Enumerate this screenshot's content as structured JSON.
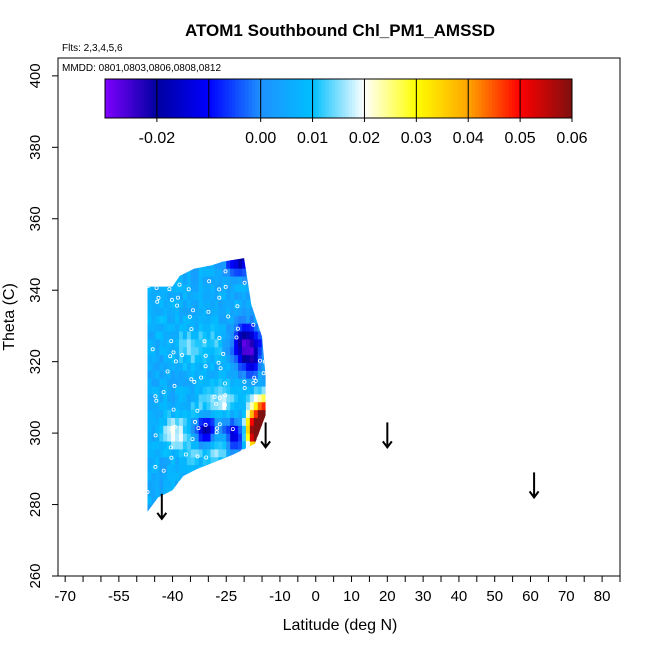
{
  "chart_data": {
    "type": "heatmap",
    "title": "ATOM1 Southbound Chl_PM1_AMSSD",
    "flights_label": "Flts: 2,3,4,5,6",
    "dates_label": "MMDD: 0801,0803,0806,0808,0812",
    "xlabel": "Latitude (deg N)",
    "ylabel": "Theta (C)",
    "xlim": [
      -72,
      85
    ],
    "ylim": [
      260,
      405
    ],
    "x_ticks": [
      -70,
      -55,
      -40,
      -25,
      -10,
      0,
      10,
      20,
      30,
      40,
      50,
      60,
      70,
      80
    ],
    "x_tick_labels": [
      "-70",
      "-55",
      "-40",
      "-25",
      "-10",
      "0",
      "10",
      "20",
      "30",
      "40",
      "50",
      "60",
      "70",
      "80"
    ],
    "x_minor_ticks": [
      -65,
      -60,
      -50,
      -45,
      -35,
      -30,
      -20,
      -15,
      -5,
      5,
      15,
      25,
      35,
      45,
      55,
      65,
      75,
      85
    ],
    "y_ticks": [
      260,
      280,
      300,
      320,
      340,
      360,
      380,
      400
    ],
    "y_tick_labels": [
      "260",
      "280",
      "300",
      "320",
      "340",
      "360",
      "380",
      "400"
    ],
    "colorbar": {
      "range": [
        -0.03,
        0.06
      ],
      "ticks": [
        -0.02,
        0.0,
        0.01,
        0.02,
        0.03,
        0.04,
        0.05,
        0.06
      ],
      "tick_labels": [
        "-0.02",
        "0.00",
        "0.01",
        "0.02",
        "0.03",
        "0.04",
        "0.05",
        "0.06"
      ],
      "boundaries": [
        -0.03,
        -0.02,
        -0.01,
        0.0,
        0.01,
        0.02,
        0.03,
        0.04,
        0.05,
        0.06
      ],
      "colors": [
        "#7f00ff",
        "#0000a0",
        "#0000ff",
        "#1e90ff",
        "#00bfff",
        "#ffffff",
        "#ffff00",
        "#ffa500",
        "#ff0000",
        "#7f1010"
      ]
    },
    "grid": false,
    "data_region": {
      "lat_min": -47,
      "lat_max": -14,
      "theta_min": 278,
      "theta_max": 349,
      "outline": [
        [
          -47,
          341
        ],
        [
          -40,
          341
        ],
        [
          -38,
          344
        ],
        [
          -34,
          346
        ],
        [
          -29,
          347
        ],
        [
          -26,
          348
        ],
        [
          -20,
          349
        ],
        [
          -18,
          336
        ],
        [
          -15,
          327
        ],
        [
          -14,
          316
        ],
        [
          -14,
          305
        ],
        [
          -17,
          297
        ],
        [
          -23,
          294
        ],
        [
          -28,
          292
        ],
        [
          -33,
          290
        ],
        [
          -37,
          288
        ],
        [
          -40,
          284
        ],
        [
          -44,
          282
        ],
        [
          -47,
          278
        ]
      ]
    },
    "features": [
      {
        "lat": -36,
        "theta": 323,
        "value": 0.015
      },
      {
        "lat": -30,
        "theta": 324,
        "value": 0.012
      },
      {
        "lat": -26,
        "theta": 308,
        "value": 0.018
      },
      {
        "lat": -32,
        "theta": 306,
        "value": 0.014
      },
      {
        "lat": -16,
        "theta": 300,
        "value": 0.055
      },
      {
        "lat": -15,
        "theta": 305,
        "value": 0.045
      },
      {
        "lat": -18,
        "theta": 298,
        "value": 0.03
      },
      {
        "lat": -31,
        "theta": 299,
        "value": -0.025
      },
      {
        "lat": -23,
        "theta": 298,
        "value": -0.02
      },
      {
        "lat": -22,
        "theta": 348,
        "value": -0.02
      },
      {
        "lat": -20,
        "theta": 325,
        "value": -0.02
      },
      {
        "lat": -19,
        "theta": 320,
        "value": -0.015
      },
      {
        "lat": -40,
        "theta": 299,
        "value": 0.02
      },
      {
        "lat": -34,
        "theta": 295,
        "value": 0.015
      },
      {
        "lat": -28,
        "theta": 296,
        "value": 0.025
      },
      {
        "lat": -44,
        "theta": 330,
        "value": 0.008
      },
      {
        "lat": -40,
        "theta": 315,
        "value": 0.006
      }
    ],
    "arrows": [
      {
        "lat": -43,
        "theta_top": 283,
        "theta_bottom": 276
      },
      {
        "lat": -14,
        "theta_top": 303,
        "theta_bottom": 296
      },
      {
        "lat": 20,
        "theta_top": 303,
        "theta_bottom": 296
      },
      {
        "lat": 61,
        "theta_top": 289,
        "theta_bottom": 282
      }
    ]
  }
}
